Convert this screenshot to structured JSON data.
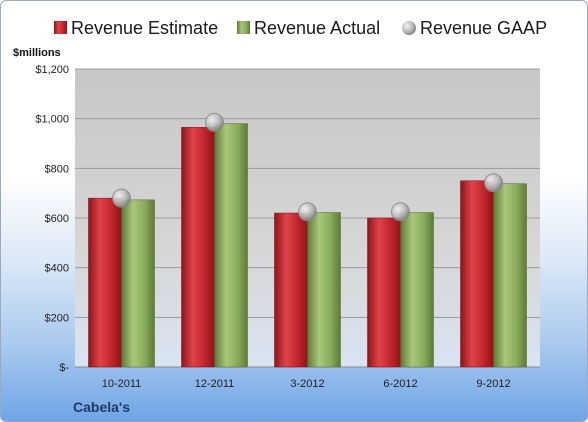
{
  "chart_data": {
    "type": "bar",
    "title": "",
    "ylabel": "$millions",
    "xlabel": "",
    "company": "Cabela's",
    "categories": [
      "10-2011",
      "12-2011",
      "3-2012",
      "6-2012",
      "9-2012"
    ],
    "ylim": [
      0,
      1200
    ],
    "yticks": [
      0,
      200,
      400,
      600,
      800,
      1000,
      1200
    ],
    "ytick_labels": [
      "$-",
      "$200",
      "$400",
      "$600",
      "$800",
      "$1,000",
      "$1,200"
    ],
    "grid": true,
    "legend_position": "top",
    "series": [
      {
        "name": "Revenue Estimate",
        "kind": "bar",
        "color": "#c0262d",
        "values": [
          680,
          965,
          620,
          600,
          750
        ]
      },
      {
        "name": "Revenue Actual",
        "kind": "bar",
        "color": "#8aab5c",
        "values": [
          673,
          980,
          622,
          622,
          738
        ]
      },
      {
        "name": "Revenue GAAP",
        "kind": "marker",
        "color": "#b5b5b5",
        "values": [
          680,
          985,
          625,
          625,
          742
        ]
      }
    ]
  }
}
